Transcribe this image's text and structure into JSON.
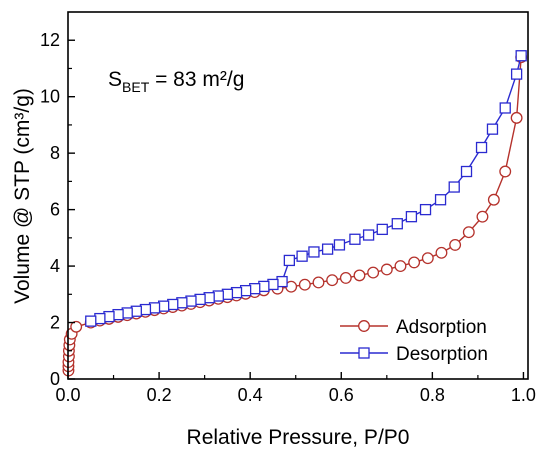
{
  "chart_data": {
    "type": "line",
    "annotation": {
      "symbol": "S",
      "subscript": "BET",
      "rest": " = 83 m²/g"
    },
    "xlabel": "Relative Pressure, P/P0",
    "ylabel": "Volume @ STP (cm³/g)",
    "xlim": [
      0,
      1.01
    ],
    "ylim": [
      0,
      13
    ],
    "grid": false,
    "legend_position": "bottom-right",
    "xticks": [
      {
        "value": 0.0,
        "label": "0.0"
      },
      {
        "value": 0.2,
        "label": "0.2"
      },
      {
        "value": 0.4,
        "label": "0.4"
      },
      {
        "value": 0.6,
        "label": "0.6"
      },
      {
        "value": 0.8,
        "label": "0.8"
      },
      {
        "value": 1.0,
        "label": "1.0"
      }
    ],
    "yticks": [
      {
        "value": 0,
        "label": "0"
      },
      {
        "value": 2,
        "label": "2"
      },
      {
        "value": 4,
        "label": "4"
      },
      {
        "value": 6,
        "label": "6"
      },
      {
        "value": 8,
        "label": "8"
      },
      {
        "value": 10,
        "label": "10"
      },
      {
        "value": 12,
        "label": "12"
      }
    ],
    "series": [
      {
        "name": "Adsorption",
        "marker": "circle",
        "color": "#b5322c",
        "x": [
          0.001,
          0.001,
          0.001,
          0.002,
          0.002,
          0.003,
          0.004,
          0.008,
          0.018,
          0.05,
          0.07,
          0.09,
          0.11,
          0.13,
          0.15,
          0.17,
          0.19,
          0.21,
          0.23,
          0.25,
          0.27,
          0.29,
          0.31,
          0.33,
          0.35,
          0.37,
          0.39,
          0.41,
          0.43,
          0.46,
          0.49,
          0.52,
          0.55,
          0.58,
          0.61,
          0.64,
          0.67,
          0.7,
          0.73,
          0.76,
          0.79,
          0.82,
          0.85,
          0.88,
          0.91,
          0.935,
          0.96,
          0.985,
          0.995
        ],
        "y": [
          0.3,
          0.45,
          0.6,
          0.8,
          1.0,
          1.2,
          1.4,
          1.6,
          1.85,
          2.0,
          2.07,
          2.13,
          2.2,
          2.26,
          2.32,
          2.38,
          2.44,
          2.5,
          2.55,
          2.6,
          2.66,
          2.72,
          2.78,
          2.84,
          2.9,
          2.96,
          3.02,
          3.08,
          3.14,
          3.2,
          3.27,
          3.34,
          3.42,
          3.5,
          3.58,
          3.67,
          3.77,
          3.88,
          4.0,
          4.13,
          4.28,
          4.47,
          4.75,
          5.2,
          5.75,
          6.35,
          7.35,
          9.25,
          11.4
        ]
      },
      {
        "name": "Desorption",
        "marker": "square",
        "color": "#2a2ad0",
        "x": [
          0.995,
          0.985,
          0.96,
          0.932,
          0.908,
          0.875,
          0.848,
          0.818,
          0.785,
          0.754,
          0.723,
          0.69,
          0.66,
          0.63,
          0.596,
          0.57,
          0.54,
          0.514,
          0.486,
          0.47,
          0.45,
          0.43,
          0.41,
          0.39,
          0.37,
          0.35,
          0.33,
          0.31,
          0.29,
          0.27,
          0.25,
          0.23,
          0.21,
          0.19,
          0.17,
          0.15,
          0.13,
          0.11,
          0.09,
          0.07,
          0.05
        ],
        "y": [
          11.45,
          10.8,
          9.6,
          8.85,
          8.2,
          7.35,
          6.8,
          6.35,
          6.0,
          5.75,
          5.5,
          5.3,
          5.1,
          4.95,
          4.75,
          4.6,
          4.5,
          4.35,
          4.2,
          3.45,
          3.35,
          3.28,
          3.2,
          3.13,
          3.06,
          3.0,
          2.94,
          2.88,
          2.82,
          2.76,
          2.7,
          2.64,
          2.58,
          2.52,
          2.46,
          2.4,
          2.34,
          2.28,
          2.21,
          2.14,
          2.05
        ]
      }
    ]
  }
}
